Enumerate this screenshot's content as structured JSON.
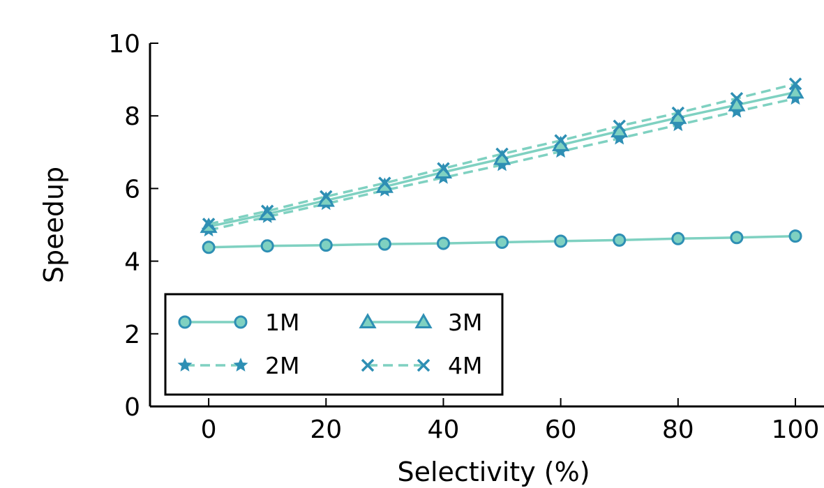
{
  "chart_data": {
    "type": "line",
    "title": "",
    "xlabel": "Selectivity (%)",
    "ylabel": "Speedup",
    "x": [
      0,
      10,
      20,
      30,
      40,
      50,
      60,
      70,
      80,
      90,
      100
    ],
    "xlim": [
      -10,
      100
    ],
    "ylim": [
      0,
      10
    ],
    "xticks": [
      0,
      20,
      40,
      60,
      80,
      100
    ],
    "yticks": [
      0,
      2,
      4,
      6,
      8,
      10
    ],
    "grid": false,
    "legend_position": "lower-left",
    "series": [
      {
        "name": "1M",
        "marker": "circle",
        "line_style": "solid",
        "color": "#7fd1c1",
        "marker_color": "#2e8fb4",
        "values": [
          4.38,
          4.42,
          4.44,
          4.47,
          4.49,
          4.52,
          4.55,
          4.58,
          4.62,
          4.65,
          4.69
        ]
      },
      {
        "name": "2M",
        "marker": "star",
        "line_style": "dashed",
        "color": "#7fd1c1",
        "marker_color": "#2e8fb4",
        "values": [
          4.85,
          5.22,
          5.58,
          5.95,
          6.3,
          6.65,
          7.02,
          7.38,
          7.75,
          8.12,
          8.48
        ]
      },
      {
        "name": "3M",
        "marker": "triangle",
        "line_style": "solid",
        "color": "#7fd1c1",
        "marker_color": "#2e8fb4",
        "values": [
          4.95,
          5.3,
          5.67,
          6.05,
          6.45,
          6.82,
          7.2,
          7.58,
          7.95,
          8.3,
          8.65
        ]
      },
      {
        "name": "4M",
        "marker": "x",
        "line_style": "dashed",
        "color": "#7fd1c1",
        "marker_color": "#2e8fb4",
        "values": [
          5.02,
          5.38,
          5.78,
          6.15,
          6.55,
          6.95,
          7.32,
          7.72,
          8.08,
          8.48,
          8.88
        ]
      }
    ]
  }
}
